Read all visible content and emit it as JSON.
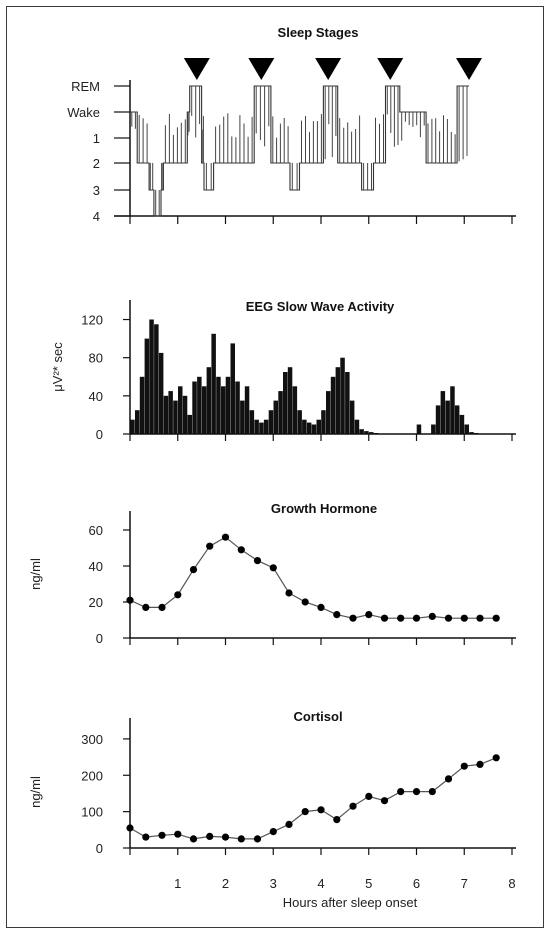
{
  "chart_data": [
    {
      "type": "line",
      "title": "Sleep Stages",
      "ylabel": "",
      "stage_labels": [
        "REM",
        "Wake",
        "1",
        "2",
        "3",
        "4"
      ],
      "rem_markers_hours": [
        1.4,
        2.75,
        4.15,
        5.45,
        7.1
      ],
      "segments": [
        {
          "x": [
            0.0,
            0.15
          ],
          "stage": "Wake"
        },
        {
          "x": [
            0.15,
            0.4
          ],
          "stage": "2"
        },
        {
          "x": [
            0.4,
            0.5
          ],
          "stage": "3"
        },
        {
          "x": [
            0.5,
            0.65
          ],
          "stage": "4"
        },
        {
          "x": [
            0.65,
            0.7
          ],
          "stage": "3"
        },
        {
          "x": [
            0.7,
            1.2
          ],
          "stage": "2"
        },
        {
          "x": [
            1.2,
            1.25
          ],
          "stage": "Wake"
        },
        {
          "x": [
            1.25,
            1.5
          ],
          "stage": "REM"
        },
        {
          "x": [
            1.5,
            1.55
          ],
          "stage": "2"
        },
        {
          "x": [
            1.55,
            1.75
          ],
          "stage": "3"
        },
        {
          "x": [
            1.75,
            2.6
          ],
          "stage": "2"
        },
        {
          "x": [
            2.6,
            2.95
          ],
          "stage": "REM"
        },
        {
          "x": [
            2.95,
            3.35
          ],
          "stage": "2"
        },
        {
          "x": [
            3.35,
            3.55
          ],
          "stage": "3"
        },
        {
          "x": [
            3.55,
            4.05
          ],
          "stage": "2"
        },
        {
          "x": [
            4.05,
            4.35
          ],
          "stage": "REM"
        },
        {
          "x": [
            4.35,
            4.85
          ],
          "stage": "2"
        },
        {
          "x": [
            4.85,
            5.1
          ],
          "stage": "3"
        },
        {
          "x": [
            5.1,
            5.35
          ],
          "stage": "2"
        },
        {
          "x": [
            5.35,
            5.65
          ],
          "stage": "REM"
        },
        {
          "x": [
            5.65,
            6.2
          ],
          "stage": "Wake"
        },
        {
          "x": [
            6.2,
            6.85
          ],
          "stage": "2"
        },
        {
          "x": [
            6.85,
            7.1
          ],
          "stage": "REM"
        }
      ],
      "xlim": [
        0,
        8
      ]
    },
    {
      "type": "bar",
      "title": "EEG Slow Wave Activity",
      "ylabel": "μV²* sec",
      "yticks": [
        0,
        40,
        80,
        120
      ],
      "ylim": [
        0,
        130
      ],
      "x": [
        0.1,
        0.2,
        0.3,
        0.4,
        0.5,
        0.6,
        0.7,
        0.8,
        0.9,
        1.0,
        1.1,
        1.2,
        1.3,
        1.4,
        1.5,
        1.6,
        1.7,
        1.8,
        1.9,
        2.0,
        2.1,
        2.2,
        2.3,
        2.4,
        2.5,
        2.6,
        2.7,
        2.8,
        2.9,
        3.0,
        3.1,
        3.2,
        3.3,
        3.4,
        3.5,
        3.6,
        3.7,
        3.8,
        3.9,
        4.0,
        4.1,
        4.2,
        4.3,
        4.4,
        4.5,
        4.6,
        4.7,
        4.8,
        4.9,
        5.0,
        5.1,
        5.2,
        5.3,
        5.4,
        5.5,
        5.6,
        5.7,
        5.8,
        5.9,
        6.0,
        6.1,
        6.2,
        6.3,
        6.4,
        6.5,
        6.6,
        6.7,
        6.8,
        6.9,
        7.0,
        7.1,
        7.2,
        7.3,
        7.4,
        7.5,
        7.6,
        7.7,
        7.8
      ],
      "values": [
        15,
        25,
        60,
        100,
        120,
        115,
        85,
        40,
        45,
        35,
        50,
        40,
        20,
        55,
        60,
        50,
        70,
        105,
        60,
        50,
        60,
        95,
        55,
        35,
        50,
        25,
        15,
        12,
        15,
        25,
        35,
        45,
        65,
        70,
        50,
        25,
        15,
        12,
        10,
        15,
        25,
        45,
        60,
        70,
        80,
        65,
        35,
        15,
        5,
        3,
        2,
        1,
        0,
        0,
        0,
        0,
        0,
        0,
        0,
        0,
        10,
        0,
        0,
        10,
        30,
        45,
        35,
        50,
        30,
        20,
        10,
        2,
        1,
        0,
        0,
        0,
        0,
        0
      ],
      "xlim": [
        0,
        8
      ]
    },
    {
      "type": "line",
      "title": "Growth Hormone",
      "ylabel": "ng/ml",
      "yticks": [
        0,
        20,
        40,
        60
      ],
      "ylim": [
        0,
        65
      ],
      "x": [
        0.0,
        0.33,
        0.67,
        1.0,
        1.33,
        1.67,
        2.0,
        2.33,
        2.67,
        3.0,
        3.33,
        3.67,
        4.0,
        4.33,
        4.67,
        5.0,
        5.33,
        5.67,
        6.0,
        6.33,
        6.67,
        7.0,
        7.33,
        7.67
      ],
      "values": [
        21,
        17,
        17,
        24,
        38,
        51,
        56,
        49,
        43,
        39,
        25,
        20,
        17,
        13,
        11,
        13,
        11,
        11,
        11,
        12,
        11,
        11,
        11,
        11
      ],
      "xlim": [
        0,
        8
      ]
    },
    {
      "type": "line",
      "title": "Cortisol",
      "ylabel": "ng/ml",
      "yticks": [
        0,
        100,
        200,
        300
      ],
      "ylim": [
        0,
        330
      ],
      "x": [
        0.0,
        0.33,
        0.67,
        1.0,
        1.33,
        1.67,
        2.0,
        2.33,
        2.67,
        3.0,
        3.33,
        3.67,
        4.0,
        4.33,
        4.67,
        5.0,
        5.33,
        5.67,
        6.0,
        6.33,
        6.67,
        7.0,
        7.33,
        7.67
      ],
      "values": [
        55,
        30,
        35,
        38,
        25,
        32,
        30,
        25,
        25,
        45,
        65,
        100,
        105,
        78,
        115,
        142,
        130,
        155,
        155,
        155,
        190,
        225,
        230,
        248
      ],
      "xticks": [
        1,
        2,
        3,
        4,
        5,
        6,
        7,
        8
      ],
      "xlabel": "Hours after sleep onset",
      "xlim": [
        0,
        8
      ]
    }
  ]
}
